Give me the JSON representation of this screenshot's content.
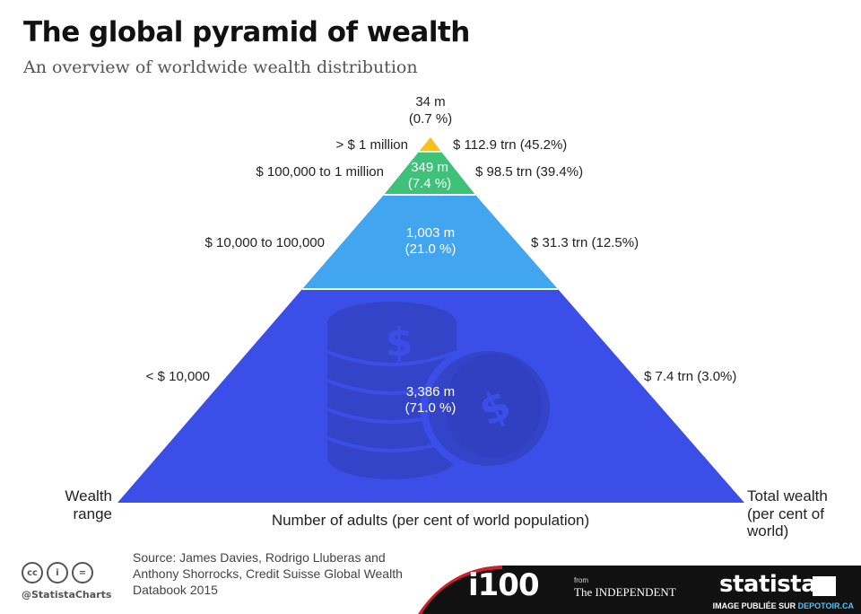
{
  "header": {
    "title": "The global pyramid of wealth",
    "subtitle": "An overview of worldwide wealth distribution"
  },
  "chart_data": {
    "type": "pyramid",
    "title": "The global pyramid of wealth",
    "subtitle": "An overview of worldwide wealth distribution",
    "left_axis_label": "Wealth range",
    "right_axis_label": "Total wealth (per cent of world)",
    "bottom_axis_label": "Number of adults (per cent of world population)",
    "tiers": [
      {
        "wealth_range": "> $ 1 million",
        "adults": "34 m",
        "adults_pct": "(0.7 %)",
        "adults_millions": 34,
        "adults_share": 0.7,
        "total_wealth": "$ 112.9 trn (45.2%)",
        "wealth_trn": 112.9,
        "wealth_share": 45.2,
        "color": "#F4C21B"
      },
      {
        "wealth_range": "$ 100,000 to 1 million",
        "adults": "349 m",
        "adults_pct": "(7.4 %)",
        "adults_millions": 349,
        "adults_share": 7.4,
        "total_wealth": "$ 98.5 trn (39.4%)",
        "wealth_trn": 98.5,
        "wealth_share": 39.4,
        "color": "#3FC17A"
      },
      {
        "wealth_range": "$ 10,000 to 100,000",
        "adults": "1,003 m",
        "adults_pct": "(21.0 %)",
        "adults_millions": 1003,
        "adults_share": 21.0,
        "total_wealth": "$ 31.3 trn (12.5%)",
        "wealth_trn": 31.3,
        "wealth_share": 12.5,
        "color": "#41A5F0"
      },
      {
        "wealth_range": "< $ 10,000",
        "adults": "3,386 m",
        "adults_pct": "(71.0 %)",
        "adults_millions": 3386,
        "adults_share": 71.0,
        "total_wealth": "$ 7.4 trn (3.0%)",
        "wealth_trn": 7.4,
        "wealth_share": 3.0,
        "color": "#3B4FE8"
      }
    ]
  },
  "icon": "coins-dollar-icon",
  "footer": {
    "license_icons": [
      "cc-icon",
      "attribution-icon",
      "no-derivatives-icon"
    ],
    "license_glyphs": [
      "cc",
      "i",
      "="
    ],
    "handle": "@StatistaCharts",
    "source": "Source: James Davies, Rodrigo Lluberas and Anthony Shorrocks, Credit Suisse Global Wealth Databook 2015",
    "partner_logo": "i100",
    "partner_from": "from",
    "partner_publisher": "The INDEPENDENT",
    "brand": "statista",
    "watermark_prefix": "IMAGE PUBLIÉE SUR",
    "watermark_site": "DEPOTOIR.CA",
    "band_color": "#111111",
    "accent_color": "#D0202E"
  }
}
